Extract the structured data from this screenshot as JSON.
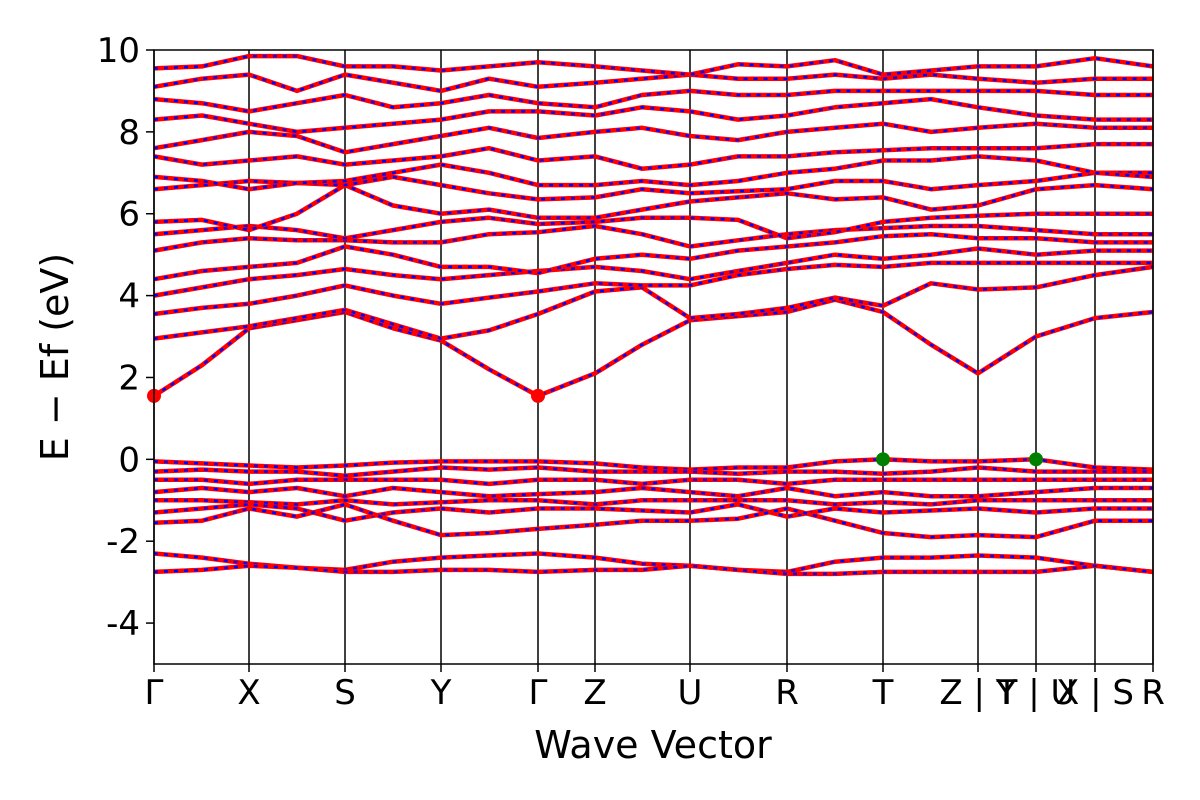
{
  "chart_data": {
    "type": "line",
    "x_label": "Wave Vector",
    "y_label": "E − Ef (eV)",
    "line_color": "#ff0000",
    "overlay_color": "#0000ff",
    "xlim": [
      0,
      9.99
    ],
    "ylim": [
      -5,
      10
    ],
    "yticks": [
      -4,
      -2,
      0,
      2,
      4,
      6,
      8,
      10
    ],
    "xticks": [
      {
        "value": 0,
        "label": "Γ"
      },
      {
        "value": 0.95,
        "label": "X"
      },
      {
        "value": 1.91,
        "label": "S"
      },
      {
        "value": 2.87,
        "label": "Y"
      },
      {
        "value": 3.84,
        "label": "Γ"
      },
      {
        "value": 4.41,
        "label": "Z"
      },
      {
        "value": 5.36,
        "label": "U"
      },
      {
        "value": 6.33,
        "label": "R"
      },
      {
        "value": 7.29,
        "label": "T"
      },
      {
        "value": 8.24,
        "label": "Z | Y"
      },
      {
        "value": 8.82,
        "label": "T | U"
      },
      {
        "value": 9.41,
        "label": "X | S"
      },
      {
        "value": 9.99,
        "label": "R"
      }
    ],
    "x": [
      0,
      0.48,
      0.95,
      1.43,
      1.91,
      2.39,
      2.87,
      3.35,
      3.84,
      4.41,
      4.88,
      5.36,
      5.84,
      6.33,
      6.81,
      7.29,
      7.77,
      8.24,
      8.82,
      9.41,
      9.99
    ],
    "series": [
      {
        "values": [
          1.55,
          2.3,
          3.2,
          3.4,
          3.6,
          3.2,
          2.9,
          2.2,
          1.55,
          2.1,
          2.8,
          3.4,
          3.5,
          3.6,
          3.9,
          3.6,
          2.8,
          2.1,
          3.0,
          3.45,
          3.6
        ]
      },
      {
        "values": [
          2.95,
          3.1,
          3.25,
          3.45,
          3.65,
          3.3,
          2.95,
          3.15,
          3.55,
          4.1,
          4.2,
          3.45,
          3.55,
          3.7,
          3.95,
          3.75,
          4.3,
          4.15,
          4.2,
          4.5,
          4.7
        ]
      },
      {
        "values": [
          3.55,
          3.7,
          3.8,
          4.0,
          4.25,
          4.0,
          3.8,
          3.95,
          4.1,
          4.3,
          4.25,
          4.25,
          4.5,
          4.65,
          4.75,
          4.7,
          4.8,
          4.8,
          4.8,
          4.8,
          4.8
        ]
      },
      {
        "values": [
          4.0,
          4.2,
          4.4,
          4.5,
          4.65,
          4.5,
          4.4,
          4.5,
          4.6,
          4.7,
          4.6,
          4.4,
          4.6,
          4.8,
          5.0,
          4.9,
          5.0,
          5.15,
          5.0,
          5.1,
          5.1
        ]
      },
      {
        "values": [
          4.4,
          4.6,
          4.7,
          4.8,
          5.2,
          5.0,
          4.7,
          4.7,
          4.55,
          4.9,
          5.0,
          4.9,
          5.1,
          5.2,
          5.3,
          5.45,
          5.5,
          5.4,
          5.4,
          5.3,
          5.3
        ]
      },
      {
        "values": [
          5.1,
          5.3,
          5.4,
          5.35,
          5.35,
          5.3,
          5.3,
          5.5,
          5.55,
          5.7,
          5.5,
          5.2,
          5.35,
          5.5,
          5.6,
          5.65,
          5.7,
          5.7,
          5.6,
          5.5,
          5.5
        ]
      },
      {
        "values": [
          5.5,
          5.6,
          5.7,
          5.6,
          5.4,
          5.6,
          5.8,
          5.9,
          5.75,
          5.8,
          5.9,
          5.9,
          5.85,
          5.4,
          5.55,
          5.8,
          5.9,
          5.95,
          6.0,
          6.0,
          6.0
        ]
      },
      {
        "values": [
          5.8,
          5.85,
          5.6,
          6.0,
          6.7,
          6.2,
          6.0,
          6.1,
          5.9,
          5.9,
          6.1,
          6.3,
          6.4,
          6.5,
          6.35,
          6.4,
          6.1,
          6.2,
          6.6,
          6.7,
          6.6
        ]
      },
      {
        "values": [
          6.6,
          6.7,
          6.8,
          6.75,
          6.7,
          6.9,
          6.7,
          6.5,
          6.35,
          6.4,
          6.6,
          6.5,
          6.55,
          6.6,
          6.8,
          6.8,
          6.6,
          6.7,
          6.8,
          7.0,
          7.0
        ]
      },
      {
        "values": [
          6.9,
          6.8,
          6.6,
          6.75,
          6.8,
          7.0,
          7.2,
          7.0,
          6.7,
          6.7,
          6.8,
          6.7,
          6.8,
          7.0,
          7.1,
          7.3,
          7.3,
          7.4,
          7.3,
          7.0,
          6.9
        ]
      },
      {
        "values": [
          7.4,
          7.2,
          7.3,
          7.4,
          7.2,
          7.3,
          7.4,
          7.6,
          7.3,
          7.4,
          7.1,
          7.2,
          7.4,
          7.4,
          7.5,
          7.55,
          7.6,
          7.6,
          7.6,
          7.7,
          7.7
        ]
      },
      {
        "values": [
          7.6,
          7.8,
          8.0,
          7.9,
          7.5,
          7.7,
          7.9,
          8.1,
          7.85,
          8.0,
          8.1,
          7.9,
          7.8,
          8.0,
          8.1,
          8.2,
          8.0,
          8.1,
          8.2,
          8.1,
          8.1
        ]
      },
      {
        "values": [
          8.3,
          8.4,
          8.2,
          8.0,
          8.1,
          8.2,
          8.3,
          8.5,
          8.5,
          8.4,
          8.6,
          8.5,
          8.3,
          8.4,
          8.6,
          8.7,
          8.8,
          8.6,
          8.4,
          8.3,
          8.3
        ]
      },
      {
        "values": [
          8.8,
          8.7,
          8.5,
          8.7,
          8.9,
          8.6,
          8.7,
          8.9,
          8.7,
          8.6,
          8.9,
          9.0,
          8.9,
          8.9,
          9.0,
          9.0,
          9.0,
          9.0,
          9.0,
          8.9,
          8.9
        ]
      },
      {
        "values": [
          9.1,
          9.3,
          9.4,
          9.0,
          9.4,
          9.2,
          9.0,
          9.3,
          9.1,
          9.2,
          9.3,
          9.4,
          9.3,
          9.3,
          9.4,
          9.3,
          9.4,
          9.3,
          9.2,
          9.3,
          9.3
        ]
      },
      {
        "values": [
          9.55,
          9.6,
          9.85,
          9.85,
          9.6,
          9.6,
          9.5,
          9.6,
          9.7,
          9.6,
          9.5,
          9.4,
          9.65,
          9.6,
          9.75,
          9.4,
          9.5,
          9.6,
          9.6,
          9.8,
          9.6
        ]
      },
      {
        "values": [
          -0.05,
          -0.1,
          -0.15,
          -0.2,
          -0.15,
          -0.08,
          -0.05,
          -0.05,
          -0.05,
          -0.1,
          -0.2,
          -0.25,
          -0.2,
          -0.2,
          -0.05,
          0,
          -0.05,
          -0.05,
          0,
          -0.2,
          -0.25
        ]
      },
      {
        "values": [
          -0.3,
          -0.25,
          -0.3,
          -0.3,
          -0.4,
          -0.3,
          -0.2,
          -0.25,
          -0.2,
          -0.3,
          -0.3,
          -0.3,
          -0.35,
          -0.3,
          -0.3,
          -0.35,
          -0.3,
          -0.2,
          -0.3,
          -0.3,
          -0.3
        ]
      },
      {
        "values": [
          -0.5,
          -0.5,
          -0.6,
          -0.5,
          -0.5,
          -0.5,
          -0.5,
          -0.6,
          -0.5,
          -0.5,
          -0.6,
          -0.5,
          -0.5,
          -0.6,
          -0.5,
          -0.5,
          -0.5,
          -0.5,
          -0.5,
          -0.5,
          -0.5
        ]
      },
      {
        "values": [
          -0.8,
          -0.7,
          -0.8,
          -0.7,
          -0.9,
          -0.7,
          -0.8,
          -0.9,
          -0.85,
          -0.8,
          -0.7,
          -0.8,
          -0.9,
          -0.7,
          -0.9,
          -0.8,
          -0.9,
          -0.9,
          -0.8,
          -0.7,
          -0.7
        ]
      },
      {
        "values": [
          -1.0,
          -1.0,
          -1.05,
          -1.1,
          -1.0,
          -1.1,
          -1.05,
          -1.0,
          -1.0,
          -1.1,
          -1.0,
          -1.0,
          -1.0,
          -1.0,
          -1.1,
          -1.05,
          -1.1,
          -1.0,
          -1.0,
          -1.0,
          -1.0
        ]
      },
      {
        "values": [
          -1.3,
          -1.2,
          -1.1,
          -1.2,
          -1.5,
          -1.3,
          -1.2,
          -1.3,
          -1.2,
          -1.2,
          -1.25,
          -1.3,
          -1.1,
          -1.4,
          -1.2,
          -1.3,
          -1.25,
          -1.2,
          -1.3,
          -1.2,
          -1.2
        ]
      },
      {
        "values": [
          -1.55,
          -1.5,
          -1.2,
          -1.4,
          -1.1,
          -1.5,
          -1.85,
          -1.8,
          -1.7,
          -1.6,
          -1.5,
          -1.5,
          -1.45,
          -1.2,
          -1.5,
          -1.8,
          -1.9,
          -1.85,
          -1.9,
          -1.5,
          -1.5
        ]
      },
      {
        "values": [
          -2.3,
          -2.4,
          -2.55,
          -2.65,
          -2.7,
          -2.5,
          -2.4,
          -2.35,
          -2.3,
          -2.4,
          -2.55,
          -2.6,
          -2.7,
          -2.75,
          -2.5,
          -2.4,
          -2.4,
          -2.35,
          -2.4,
          -2.6,
          -2.75
        ]
      },
      {
        "values": [
          -2.75,
          -2.7,
          -2.6,
          -2.65,
          -2.75,
          -2.75,
          -2.7,
          -2.7,
          -2.75,
          -2.7,
          -2.7,
          -2.6,
          -2.7,
          -2.8,
          -2.8,
          -2.75,
          -2.75,
          -2.75,
          -2.75,
          -2.6,
          -2.75
        ]
      }
    ],
    "cbm": {
      "color": "#ff0000",
      "x": [
        0,
        3.84
      ],
      "y": [
        1.55,
        1.55
      ]
    },
    "vbm": {
      "color": "#008000",
      "x": [
        7.29,
        8.82
      ],
      "y": [
        0,
        0
      ]
    }
  }
}
